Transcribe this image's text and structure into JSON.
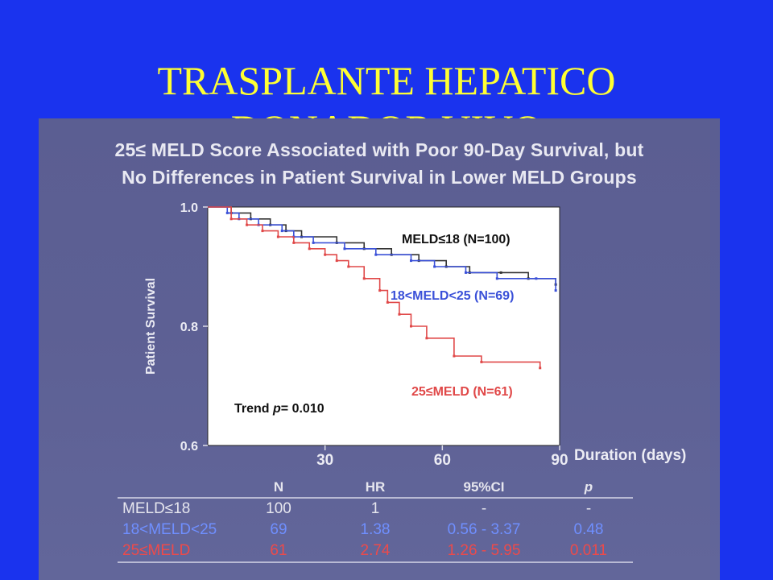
{
  "slide": {
    "title_line1": "TRASPLANTE HEPATICO",
    "title_line2": "DONADOR VIVO"
  },
  "colors": {
    "background": "#1a33ee",
    "title": "#ffff33",
    "series_black": "#333333",
    "series_blue": "#3a50d8",
    "series_red": "#e04848"
  },
  "chart_data": {
    "type": "line",
    "title": "25≤ MELD Score Associated with Poor 90-Day Survival, but",
    "subtitle": "No Differences in Patient Survival in Lower MELD Groups",
    "xlabel": "Duration (days)",
    "ylabel": "Patient Survival",
    "xlim": [
      0,
      90
    ],
    "ylim": [
      0.6,
      1.0
    ],
    "x_ticks": [
      30,
      60,
      90
    ],
    "y_ticks": [
      {
        "value": 1.0,
        "label": "1.0"
      },
      {
        "value": 0.8,
        "label": "0.8"
      },
      {
        "value": 0.6,
        "label": "0.6"
      }
    ],
    "annotation": {
      "prefix": "Trend ",
      "p": "p",
      "suffix": "= 0.010"
    },
    "series": [
      {
        "name": "MELD≤18 (N=100)",
        "color": "#333333",
        "x": [
          0,
          6,
          11,
          16,
          20,
          24,
          33,
          40,
          47,
          54,
          61,
          67,
          75,
          82,
          89
        ],
        "y": [
          1.0,
          0.99,
          0.98,
          0.97,
          0.96,
          0.95,
          0.94,
          0.93,
          0.92,
          0.91,
          0.9,
          0.89,
          0.89,
          0.88,
          0.87
        ]
      },
      {
        "name": "18<MELD<25 (N=69)",
        "color": "#3a50d8",
        "x": [
          0,
          5,
          8,
          13,
          19,
          22,
          27,
          35,
          43,
          52,
          58,
          66,
          74,
          84,
          89
        ],
        "y": [
          1.0,
          0.99,
          0.98,
          0.97,
          0.96,
          0.95,
          0.94,
          0.93,
          0.92,
          0.91,
          0.9,
          0.89,
          0.88,
          0.88,
          0.86
        ]
      },
      {
        "name": "25≤MELD (N=61)",
        "color": "#e04848",
        "x": [
          0,
          6,
          10,
          14,
          18,
          22,
          26,
          30,
          33,
          36,
          40,
          44,
          46,
          49,
          52,
          56,
          63,
          70,
          85
        ],
        "y": [
          1.0,
          0.98,
          0.97,
          0.96,
          0.95,
          0.94,
          0.93,
          0.92,
          0.91,
          0.9,
          0.88,
          0.86,
          0.84,
          0.82,
          0.8,
          0.78,
          0.75,
          0.74,
          0.73
        ]
      }
    ]
  },
  "table": {
    "headers": [
      "",
      "N",
      "HR",
      "95%CI",
      "p"
    ],
    "rows": [
      {
        "label": "MELD≤18",
        "n": "100",
        "hr": "1",
        "ci": "-",
        "p": "-"
      },
      {
        "label": "18<MELD<25",
        "n": "69",
        "hr": "1.38",
        "ci": "0.56 - 3.37",
        "p": "0.48"
      },
      {
        "label": "25≤MELD",
        "n": "61",
        "hr": "2.74",
        "ci": "1.26 - 5.95",
        "p": "0.011"
      }
    ]
  }
}
